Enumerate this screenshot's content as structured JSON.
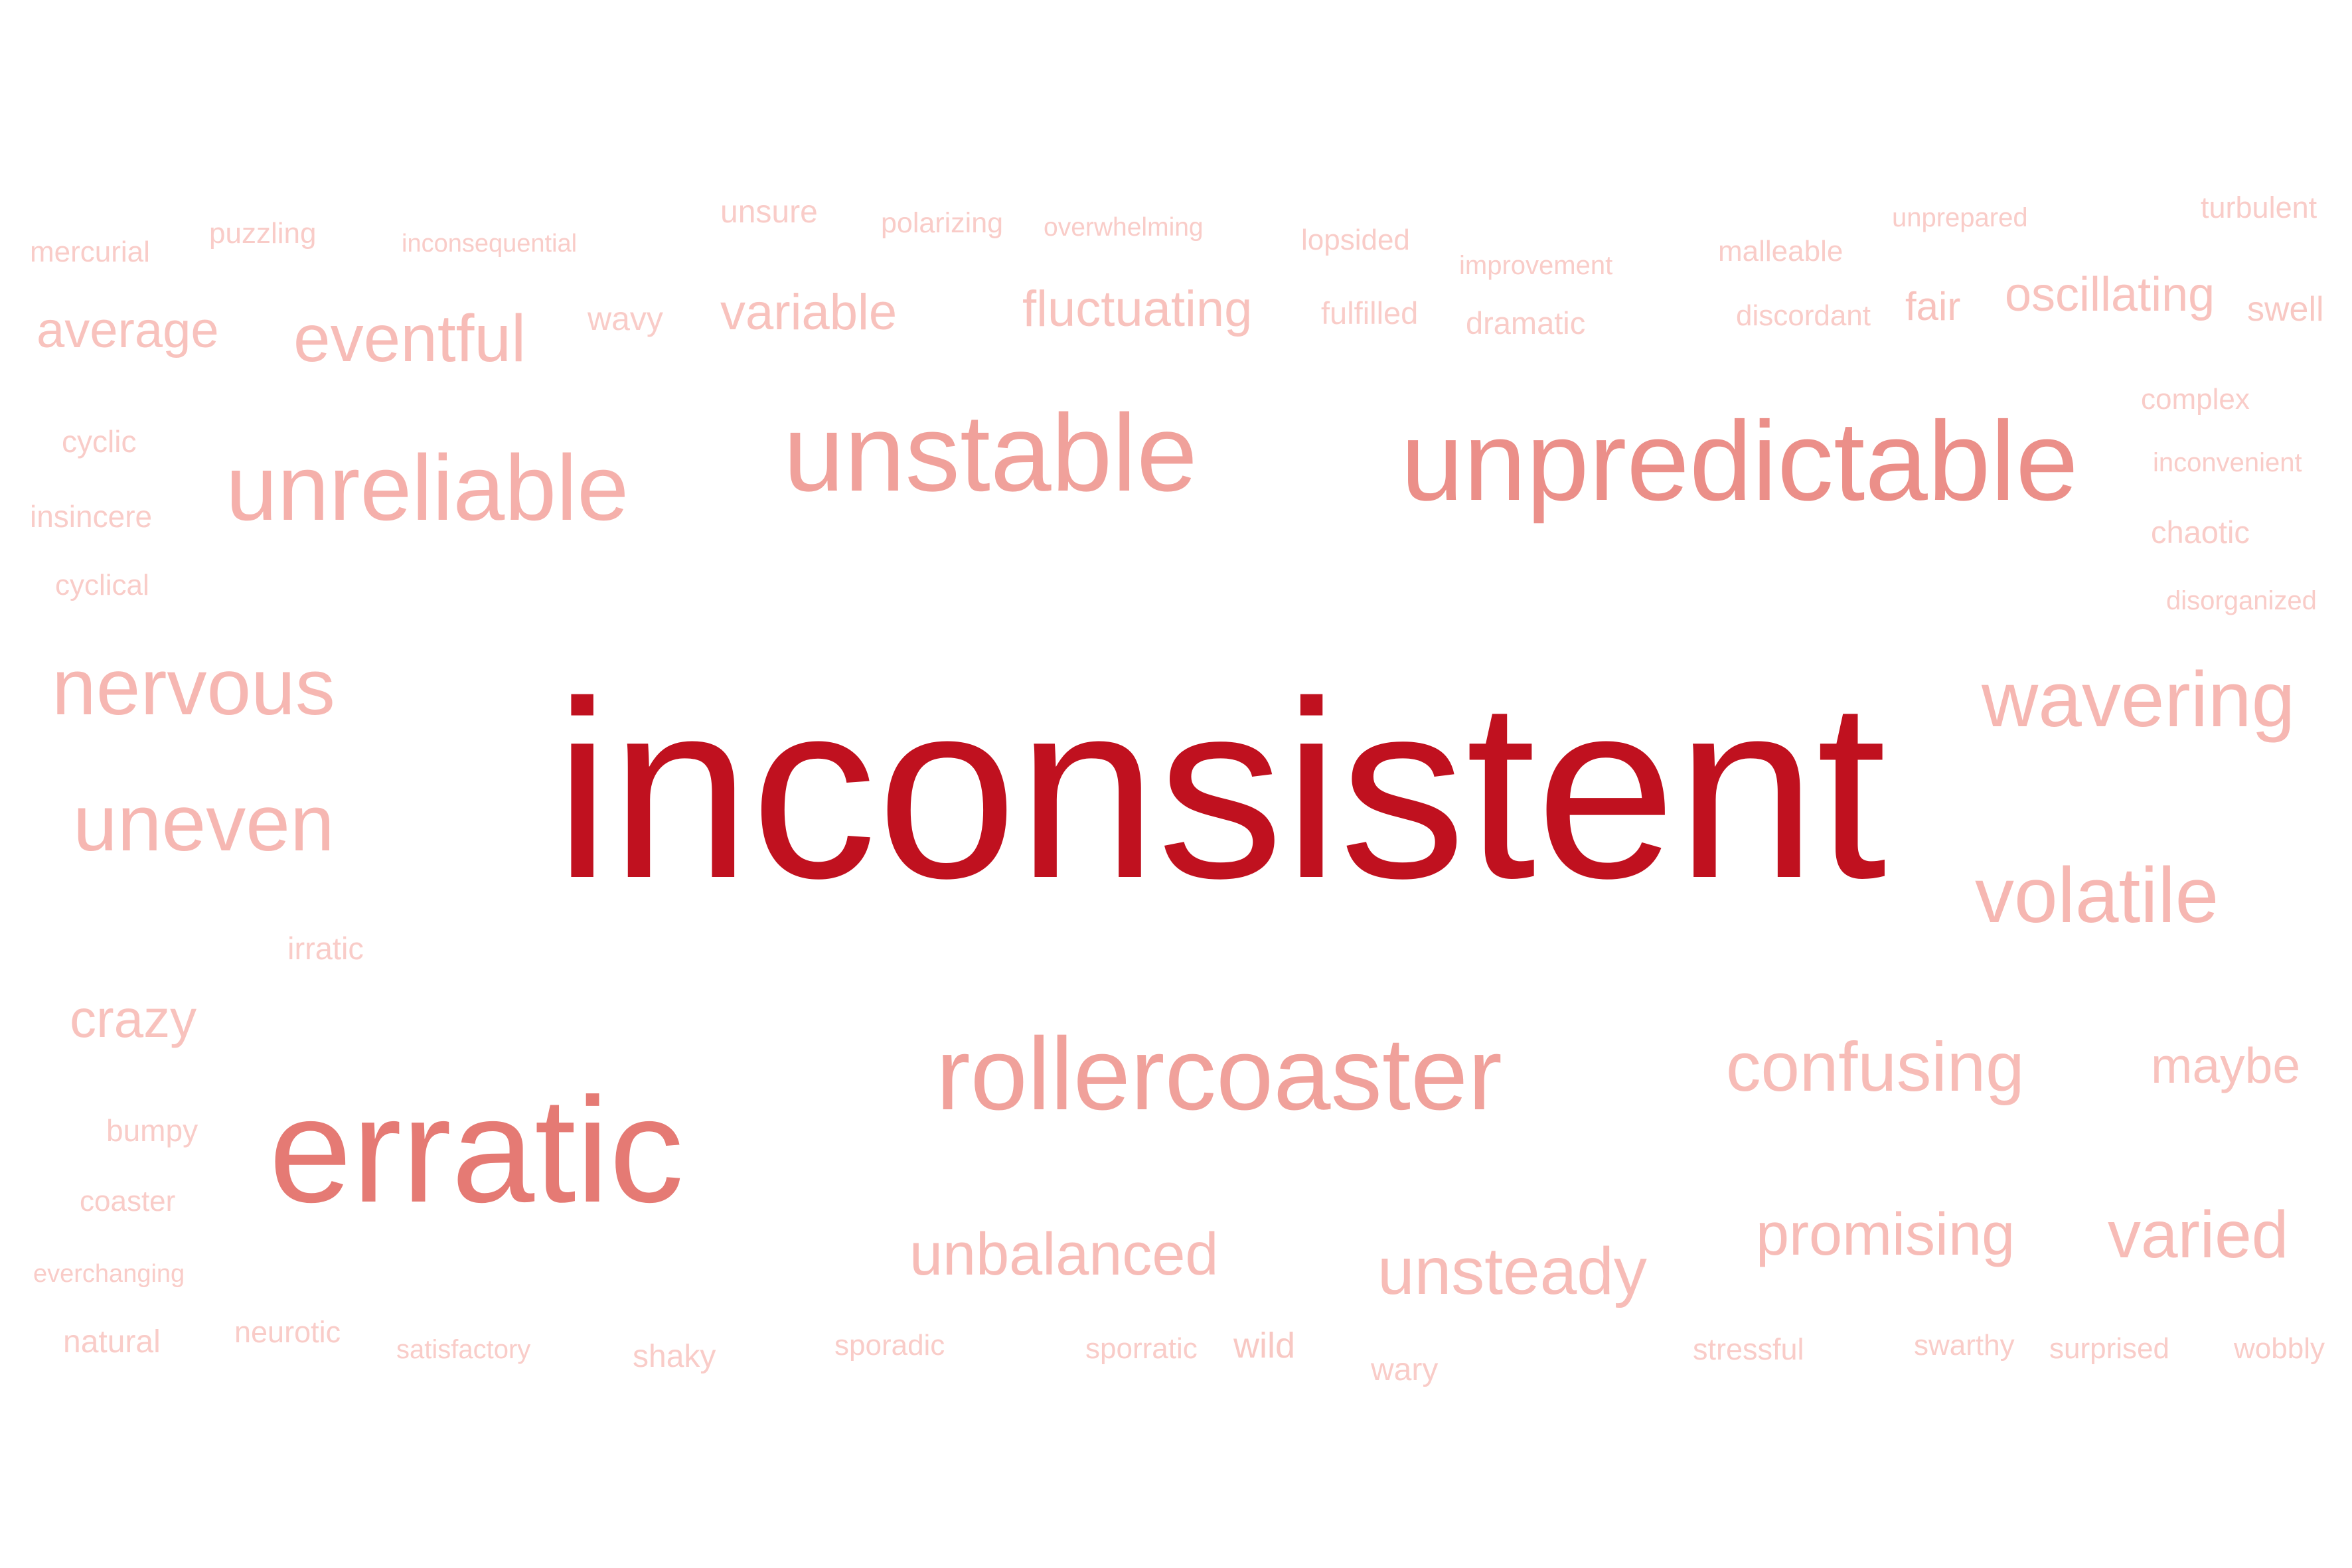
{
  "words": [
    {
      "text": "inconsistent",
      "weight": 1.0,
      "color": "#c0111f"
    },
    {
      "text": "erratic",
      "weight": 0.62,
      "color": "#e57a74"
    },
    {
      "text": "unpredictable",
      "weight": 0.55,
      "color": "#eb8f89"
    },
    {
      "text": "unstable",
      "weight": 0.5,
      "color": "#f0a19b"
    },
    {
      "text": "rollercoaster",
      "weight": 0.5,
      "color": "#f0a19b"
    },
    {
      "text": "unreliable",
      "weight": 0.45,
      "color": "#f5b0ab"
    },
    {
      "text": "nervous",
      "weight": 0.4,
      "color": "#f6b7b2"
    },
    {
      "text": "uneven",
      "weight": 0.4,
      "color": "#f6b7b2"
    },
    {
      "text": "wavering",
      "weight": 0.38,
      "color": "#f6b7b2"
    },
    {
      "text": "volatile",
      "weight": 0.38,
      "color": "#f6b7b2"
    },
    {
      "text": "confusing",
      "weight": 0.34,
      "color": "#f7bcb7"
    },
    {
      "text": "eventful",
      "weight": 0.3,
      "color": "#f7bcb7"
    },
    {
      "text": "unsteady",
      "weight": 0.3,
      "color": "#f7bcb7"
    },
    {
      "text": "varied",
      "weight": 0.3,
      "color": "#f7bcb7"
    },
    {
      "text": "unbalanced",
      "weight": 0.28,
      "color": "#f7bcb7"
    },
    {
      "text": "promising",
      "weight": 0.28,
      "color": "#f7bcb7"
    },
    {
      "text": "average",
      "weight": 0.24,
      "color": "#f8c2bd"
    },
    {
      "text": "variable",
      "weight": 0.24,
      "color": "#f8c2bd"
    },
    {
      "text": "fluctuating",
      "weight": 0.24,
      "color": "#f8c2bd"
    },
    {
      "text": "oscillating",
      "weight": 0.24,
      "color": "#f8c2bd"
    },
    {
      "text": "crazy",
      "weight": 0.24,
      "color": "#f8c2bd"
    },
    {
      "text": "maybe",
      "weight": 0.24,
      "color": "#f8c2bd"
    },
    {
      "text": "fair",
      "weight": 0.18,
      "color": "#f8c2bd"
    },
    {
      "text": "swell",
      "weight": 0.16,
      "color": "#f8c8c3"
    },
    {
      "text": "mercurial",
      "weight": 0.14,
      "color": "#f9ccc8"
    },
    {
      "text": "puzzling",
      "weight": 0.14,
      "color": "#f9ccc8"
    },
    {
      "text": "inconsequential",
      "weight": 0.12,
      "color": "#f9ccc8"
    },
    {
      "text": "unsure",
      "weight": 0.14,
      "color": "#f9ccc8"
    },
    {
      "text": "polarizing",
      "weight": 0.13,
      "color": "#f9ccc8"
    },
    {
      "text": "overwhelming",
      "weight": 0.12,
      "color": "#f9ccc8"
    },
    {
      "text": "lopsided",
      "weight": 0.14,
      "color": "#f9ccc8"
    },
    {
      "text": "improvement",
      "weight": 0.12,
      "color": "#f9ccc8"
    },
    {
      "text": "malleable",
      "weight": 0.14,
      "color": "#f9ccc8"
    },
    {
      "text": "unprepared",
      "weight": 0.12,
      "color": "#f9ccc8"
    },
    {
      "text": "turbulent",
      "weight": 0.14,
      "color": "#f9ccc8"
    },
    {
      "text": "wavy",
      "weight": 0.14,
      "color": "#f9ccc8"
    },
    {
      "text": "fulfilled",
      "weight": 0.14,
      "color": "#f9ccc8"
    },
    {
      "text": "dramatic",
      "weight": 0.14,
      "color": "#f9ccc8"
    },
    {
      "text": "discordant",
      "weight": 0.14,
      "color": "#f9ccc8"
    },
    {
      "text": "cyclic",
      "weight": 0.14,
      "color": "#f9ccc8"
    },
    {
      "text": "insincere",
      "weight": 0.14,
      "color": "#f9ccc8"
    },
    {
      "text": "cyclical",
      "weight": 0.14,
      "color": "#f9ccc8"
    },
    {
      "text": "complex",
      "weight": 0.13,
      "color": "#f9ccc8"
    },
    {
      "text": "inconvenient",
      "weight": 0.12,
      "color": "#f9ccc8"
    },
    {
      "text": "chaotic",
      "weight": 0.14,
      "color": "#f9ccc8"
    },
    {
      "text": "disorganized",
      "weight": 0.12,
      "color": "#f9ccc8"
    },
    {
      "text": "irratic",
      "weight": 0.14,
      "color": "#f9ccc8"
    },
    {
      "text": "bumpy",
      "weight": 0.14,
      "color": "#f9ccc8"
    },
    {
      "text": "coaster",
      "weight": 0.14,
      "color": "#f9ccc8"
    },
    {
      "text": "everchanging",
      "weight": 0.12,
      "color": "#f9ccc8"
    },
    {
      "text": "natural",
      "weight": 0.14,
      "color": "#f9ccc8"
    },
    {
      "text": "neurotic",
      "weight": 0.14,
      "color": "#f9ccc8"
    },
    {
      "text": "satisfactory",
      "weight": 0.12,
      "color": "#f9ccc8"
    },
    {
      "text": "shaky",
      "weight": 0.14,
      "color": "#f9ccc8"
    },
    {
      "text": "sporadic",
      "weight": 0.13,
      "color": "#f9ccc8"
    },
    {
      "text": "sporratic",
      "weight": 0.13,
      "color": "#f9ccc8"
    },
    {
      "text": "wild",
      "weight": 0.16,
      "color": "#f8c8c3"
    },
    {
      "text": "wary",
      "weight": 0.14,
      "color": "#f9ccc8"
    },
    {
      "text": "stressful",
      "weight": 0.14,
      "color": "#f9ccc8"
    },
    {
      "text": "swarthy",
      "weight": 0.13,
      "color": "#f9ccc8"
    },
    {
      "text": "surprised",
      "weight": 0.13,
      "color": "#f9ccc8"
    },
    {
      "text": "wobbly",
      "weight": 0.13,
      "color": "#f9ccc8"
    }
  ]
}
